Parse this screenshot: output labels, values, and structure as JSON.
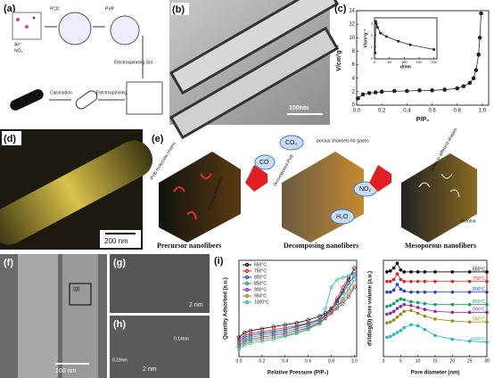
{
  "panels": {
    "a": {
      "label": "(a)",
      "ion1": "Al³⁺",
      "ion2": "NO₃⁻",
      "step1": "PCD",
      "step2": "PVP",
      "sol": "Electrospinning Sol",
      "spin": "Electrospinning",
      "calc": "Calcination"
    },
    "b": {
      "label": "(b)",
      "scale": "100nm"
    },
    "c": {
      "label": "(c)"
    },
    "d": {
      "label": "(d)",
      "scale": "200 nm"
    },
    "e": {
      "label": "(e)",
      "pvb": "PVB molecular chains",
      "precursor": "alumina precursor",
      "cap1": "Precursor nanofibers",
      "decomposed": "decomposed PVB",
      "channels": "porous channels for gases",
      "co2": "CO₂",
      "co": "CO",
      "no2": "NO₂",
      "h2o": "H₂O",
      "cap2": "Decomposing nanofibers",
      "pores": "pores in different shapes",
      "alumina": "alumina",
      "cap3": "Mesoporous nanofibers"
    },
    "f": {
      "label": "(f)",
      "box": "(g)",
      "scale": "100 nm"
    },
    "g": {
      "label": "(g)",
      "scale": "2 nm"
    },
    "h": {
      "label": "(h)",
      "scale": "2 nm",
      "d1": "0.14nm",
      "d2": "0.19nm"
    },
    "i": {
      "label": "(i)"
    }
  },
  "chart_data": [
    {
      "type": "line",
      "ylabel": "V/cm³g⁻¹",
      "xlabel": "P/P₀",
      "x": [
        0.01,
        0.05,
        0.1,
        0.15,
        0.2,
        0.3,
        0.4,
        0.5,
        0.6,
        0.7,
        0.8,
        0.85,
        0.9,
        0.93,
        0.95,
        0.97,
        0.98,
        0.99
      ],
      "series": [
        {
          "color": "#222222",
          "values": [
            1.0,
            1.6,
            1.8,
            1.9,
            2.0,
            2.1,
            2.1,
            2.2,
            2.2,
            2.3,
            2.5,
            2.8,
            3.3,
            4.0,
            5.2,
            7.5,
            10,
            13.6
          ]
        }
      ],
      "xlim": [
        0,
        1.05
      ],
      "xticks": [
        {
          "value": 0,
          "label": "0.0"
        },
        0.2,
        0.4,
        0.6,
        0.8,
        {
          "value": 1,
          "label": "1.0"
        }
      ],
      "ylim": [
        0,
        14
      ],
      "yticks": [
        0,
        2,
        4,
        6,
        8,
        10,
        12,
        14
      ]
    },
    {
      "type": "line",
      "ylabel": "V/cm³g⁻¹",
      "xlabel": "d/nm",
      "x": [
        2,
        4,
        6,
        10,
        20,
        40,
        80,
        120,
        200
      ],
      "series": [
        {
          "color": "#222222",
          "values": [
            0.5,
            3.2,
            3.0,
            2.7,
            2.2,
            1.9,
            1.5,
            1.2,
            0.8
          ]
        }
      ],
      "xlim": [
        0,
        210
      ],
      "xticks": [
        0,
        50,
        100,
        150,
        200
      ],
      "ylim": [
        0,
        3.5
      ],
      "yticks": [
        0,
        1,
        2,
        3
      ]
    },
    {
      "type": "line",
      "ylabel": "Quantity Adsorbed (a.u.)",
      "xlabel": "Relative Pressure (P/P₀)",
      "legend": "upper left",
      "x": [
        0,
        0.05,
        0.1,
        0.2,
        0.3,
        0.4,
        0.5,
        0.6,
        0.7,
        0.75,
        0.8,
        0.85,
        0.9,
        0.95,
        1.0
      ],
      "series": [
        {
          "name": "650°C",
          "color": "#000000",
          "values": [
            20,
            25,
            27,
            29,
            31,
            33,
            35,
            38,
            42,
            45,
            50,
            58,
            68,
            80,
            92
          ]
        },
        {
          "name": "750°C",
          "color": "#e0201b",
          "values": [
            18,
            22,
            24,
            26,
            28,
            30,
            32,
            35,
            39,
            43,
            49,
            60,
            72,
            82,
            88
          ]
        },
        {
          "name": "800°C",
          "color": "#1f3fd6",
          "values": [
            16,
            20,
            22,
            24,
            26,
            28,
            31,
            34,
            38,
            42,
            48,
            56,
            66,
            76,
            84
          ]
        },
        {
          "name": "850°C",
          "color": "#1a9a6a",
          "values": [
            14,
            18,
            20,
            22,
            24,
            26,
            29,
            32,
            36,
            40,
            46,
            52,
            60,
            70,
            80
          ]
        },
        {
          "name": "900°C",
          "color": "#8a2aa8",
          "values": [
            12,
            16,
            18,
            20,
            22,
            24,
            27,
            30,
            35,
            40,
            45,
            50,
            55,
            62,
            72
          ]
        },
        {
          "name": "950°C",
          "color": "#9a8a10",
          "values": [
            10,
            14,
            16,
            18,
            20,
            22,
            25,
            29,
            34,
            40,
            46,
            52,
            58,
            65,
            74
          ]
        },
        {
          "name": "1000°C",
          "color": "#22b5c9",
          "values": [
            8,
            12,
            14,
            16,
            18,
            21,
            24,
            28,
            36,
            50,
            72,
            80,
            82,
            84,
            86
          ]
        }
      ],
      "xlim": [
        0,
        1.02
      ],
      "xticks": [
        {
          "value": 0,
          "label": "0.0"
        },
        0.2,
        0.4,
        0.6,
        0.8,
        {
          "value": 1,
          "label": "1.0"
        }
      ],
      "ylim": [
        0,
        100
      ]
    },
    {
      "type": "line",
      "ylabel": "dV/dlog(D) Pore volume (a.u.)",
      "xlabel": "Pore diameter (nm)",
      "x": [
        1,
        2,
        3,
        4,
        5,
        6,
        8,
        10,
        12,
        15,
        20,
        25,
        30
      ],
      "series": [
        {
          "name": "650°C",
          "color": "#000000",
          "values": [
            88,
            89,
            92,
            97,
            90,
            88,
            88,
            88,
            88,
            88,
            88,
            88,
            88
          ]
        },
        {
          "name": "750°C",
          "color": "#e0201b",
          "values": [
            78,
            78,
            80,
            86,
            80,
            78,
            78,
            78,
            78,
            78,
            78,
            78,
            78
          ]
        },
        {
          "name": "800°C",
          "color": "#1f3fd6",
          "values": [
            67,
            67,
            69,
            75,
            70,
            68,
            67,
            67,
            67,
            67,
            67,
            67,
            67
          ]
        },
        {
          "name": "850°C",
          "color": "#1a9a6a",
          "values": [
            52,
            53,
            55,
            58,
            60,
            59,
            57,
            56,
            55,
            54,
            54,
            54,
            54
          ]
        },
        {
          "name": "900°C",
          "color": "#8a2aa8",
          "values": [
            44,
            45,
            47,
            50,
            52,
            54,
            53,
            51,
            49,
            47,
            46,
            46,
            46
          ]
        },
        {
          "name": "950°C",
          "color": "#9a8a10",
          "values": [
            35,
            36,
            38,
            41,
            44,
            47,
            48,
            45,
            42,
            39,
            37,
            36,
            36
          ]
        },
        {
          "name": "1000°C",
          "color": "#22b5c9",
          "values": [
            20,
            21,
            23,
            25,
            27,
            30,
            33,
            32,
            28,
            22,
            18,
            16,
            15
          ]
        }
      ],
      "xlim": [
        0,
        30
      ],
      "xticks": [
        0,
        5,
        10,
        15,
        20,
        25,
        30
      ],
      "ylim": [
        0,
        100
      ]
    }
  ]
}
